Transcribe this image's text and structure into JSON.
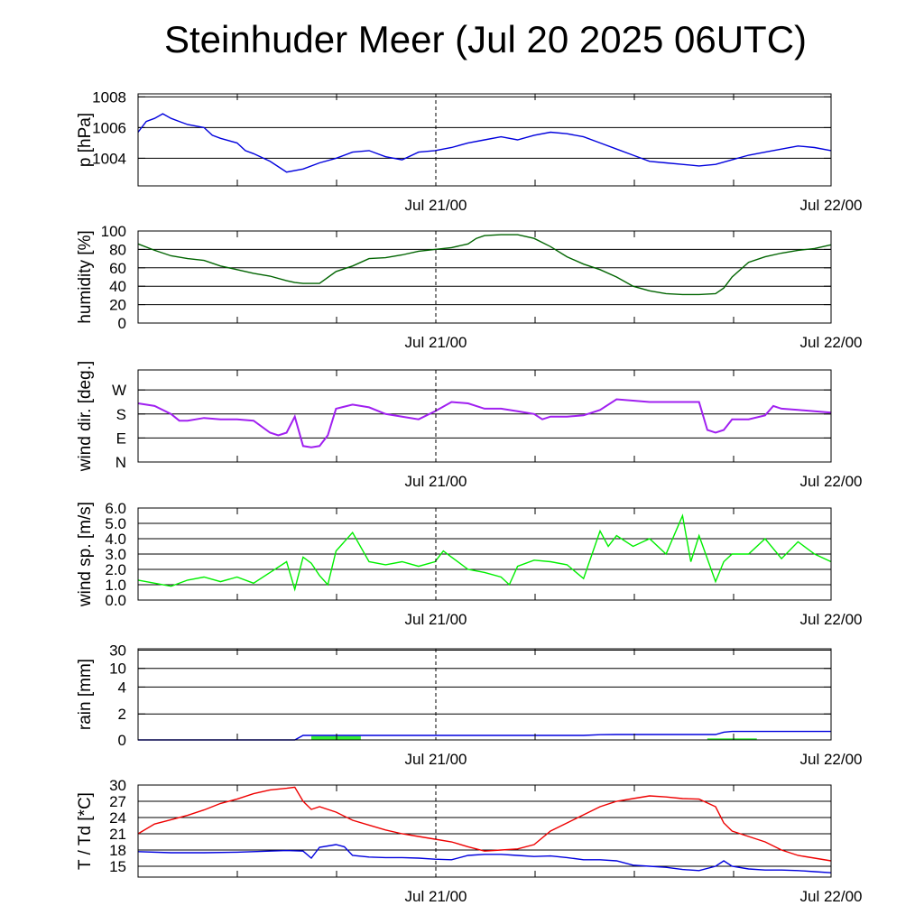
{
  "title": "Steinhuder Meer (Jul 20 2025 06UTC)",
  "x_tick_labels": [
    "Jul 21/00",
    "Jul 22/00"
  ],
  "chart_data": [
    {
      "type": "line",
      "ylabel": "p [hPa]",
      "y_ticks": [
        1004,
        1006,
        1008
      ],
      "ylim": [
        1002.2,
        1008.2
      ],
      "x_unit": "hours since Jul 20 06UTC",
      "xlim": [
        0,
        42
      ],
      "series": [
        {
          "color": "#0000dd",
          "x": [
            0,
            0.5,
            1,
            1.5,
            2,
            2.5,
            3,
            4,
            4.5,
            5,
            6,
            6.5,
            7,
            8,
            9,
            10,
            11,
            12,
            13,
            14,
            15,
            16,
            17,
            18,
            19,
            20,
            21,
            22,
            23,
            24,
            25,
            26,
            27,
            28,
            29,
            30,
            31,
            32,
            33,
            34,
            35,
            36,
            37,
            38,
            39,
            40,
            41,
            42
          ],
          "y": [
            1005.7,
            1006.4,
            1006.6,
            1006.9,
            1006.6,
            1006.4,
            1006.2,
            1006.0,
            1005.5,
            1005.3,
            1005.0,
            1004.5,
            1004.3,
            1003.8,
            1003.1,
            1003.3,
            1003.7,
            1004.0,
            1004.4,
            1004.5,
            1004.1,
            1003.9,
            1004.4,
            1004.5,
            1004.7,
            1005.0,
            1005.2,
            1005.4,
            1005.2,
            1005.5,
            1005.7,
            1005.6,
            1005.4,
            1005.0,
            1004.6,
            1004.2,
            1003.8,
            1003.7,
            1003.6,
            1003.5,
            1003.6,
            1003.9,
            1004.2,
            1004.4,
            1004.6,
            1004.8,
            1004.7,
            1004.5
          ]
        }
      ]
    },
    {
      "type": "line",
      "ylabel": "humidity [%]",
      "y_ticks": [
        0,
        20,
        40,
        60,
        80,
        100
      ],
      "ylim": [
        0,
        100
      ],
      "x_unit": "hours since Jul 20 06UTC",
      "xlim": [
        0,
        42
      ],
      "series": [
        {
          "color": "#006400",
          "x": [
            0,
            1,
            2,
            3,
            4,
            5,
            6,
            7,
            8,
            9,
            9.5,
            10,
            10.5,
            11,
            12,
            13,
            14,
            15,
            16,
            17,
            18,
            19,
            20,
            20.5,
            21,
            22,
            22.5,
            23,
            24,
            25,
            26,
            27,
            28,
            29,
            30,
            31,
            32,
            33,
            34,
            35,
            35.5,
            36,
            37,
            38,
            39,
            40,
            41,
            42
          ],
          "y": [
            86,
            79,
            73,
            70,
            68,
            62,
            58,
            54,
            51,
            46,
            44,
            43,
            43,
            43,
            56,
            62,
            70,
            71,
            74,
            78,
            80,
            82,
            86,
            92,
            95,
            96,
            96,
            96,
            92,
            83,
            72,
            64,
            58,
            50,
            40,
            35,
            32,
            31,
            31,
            32,
            38,
            50,
            66,
            72,
            76,
            79,
            81,
            85
          ]
        }
      ]
    },
    {
      "type": "scatter",
      "ylabel": "wind dir. [deg.]",
      "y_ticks": [
        "N",
        "E",
        "S",
        "W"
      ],
      "y_tick_values": [
        0,
        90,
        180,
        270
      ],
      "ylim": [
        0,
        345
      ],
      "x_unit": "hours since Jul 20 06UTC",
      "xlim": [
        0,
        42
      ],
      "series": [
        {
          "color": "#a020f0",
          "x": [
            0,
            1,
            2,
            2.5,
            3,
            4,
            5,
            6,
            7,
            8,
            8.5,
            9,
            9.5,
            10,
            10.5,
            10.5,
            11,
            11.5,
            12,
            13,
            14,
            15,
            16,
            17,
            18,
            19,
            20,
            21,
            22,
            23,
            24,
            24.5,
            25,
            26,
            27,
            28,
            29,
            30,
            31,
            32,
            33,
            34,
            34.5,
            35,
            35.5,
            36,
            37,
            38,
            38.5,
            39,
            40,
            41,
            42
          ],
          "y": [
            220,
            210,
            180,
            155,
            155,
            165,
            160,
            160,
            155,
            110,
            100,
            110,
            170,
            60,
            55,
            55,
            60,
            100,
            200,
            215,
            205,
            180,
            170,
            160,
            190,
            225,
            220,
            200,
            200,
            190,
            180,
            160,
            170,
            170,
            175,
            195,
            235,
            230,
            225,
            225,
            225,
            225,
            120,
            110,
            120,
            160,
            160,
            175,
            210,
            200,
            195,
            190,
            185
          ]
        }
      ]
    },
    {
      "type": "line",
      "ylabel": "wind sp. [m/s]",
      "y_ticks": [
        "0.0",
        "1.0",
        "2.0",
        "3.0",
        "4.0",
        "5.0",
        "6.0"
      ],
      "y_tick_values": [
        0,
        1,
        2,
        3,
        4,
        5,
        6
      ],
      "ylim": [
        0,
        6
      ],
      "x_unit": "hours since Jul 20 06UTC",
      "xlim": [
        0,
        42
      ],
      "series": [
        {
          "color": "#00ee00",
          "x": [
            0,
            1,
            2,
            3,
            4,
            5,
            6,
            7,
            8,
            9,
            9.5,
            10,
            10.5,
            11,
            11.5,
            12,
            13,
            14,
            15,
            16,
            17,
            18,
            18.5,
            19,
            20,
            21,
            22,
            22.5,
            23,
            24,
            25,
            26,
            27,
            28,
            28.5,
            29,
            30,
            31,
            32,
            33,
            33.5,
            34,
            35,
            35.5,
            36,
            37,
            38,
            39,
            40,
            41,
            42
          ],
          "y": [
            1.3,
            1.1,
            0.9,
            1.3,
            1.5,
            1.2,
            1.5,
            1.1,
            1.8,
            2.5,
            0.7,
            2.8,
            2.4,
            1.6,
            1.0,
            3.2,
            4.4,
            2.5,
            2.3,
            2.5,
            2.2,
            2.5,
            3.2,
            2.8,
            2.0,
            1.8,
            1.5,
            1.0,
            2.2,
            2.6,
            2.5,
            2.3,
            1.4,
            4.5,
            3.5,
            4.2,
            3.5,
            4.0,
            3.0,
            5.5,
            2.5,
            4.2,
            1.2,
            2.5,
            3.0,
            3.0,
            4.0,
            2.7,
            3.8,
            3.0,
            2.5
          ]
        }
      ]
    },
    {
      "type": "line",
      "ylabel": "rain [mm]",
      "y_ticks": [
        "0",
        "2",
        "4",
        "10",
        "30"
      ],
      "y_tick_values": [
        0,
        2,
        4,
        10,
        30
      ],
      "y_scale": "nonlinear",
      "ylim": [
        0,
        30
      ],
      "x_unit": "hours since Jul 20 06UTC",
      "xlim": [
        0,
        42
      ],
      "series": [
        {
          "color": "#0000dd",
          "x": [
            0,
            9.5,
            10,
            11,
            12,
            13,
            14,
            15,
            16,
            17,
            18,
            19,
            20,
            21,
            22,
            23,
            24,
            25,
            26,
            27,
            28,
            29,
            30,
            31,
            32,
            33,
            34,
            35,
            35.5,
            36,
            37,
            38,
            39,
            40,
            41,
            42
          ],
          "y": [
            0,
            0,
            0.35,
            0.35,
            0.35,
            0.35,
            0.35,
            0.35,
            0.35,
            0.35,
            0.35,
            0.35,
            0.35,
            0.35,
            0.35,
            0.35,
            0.35,
            0.35,
            0.35,
            0.35,
            0.4,
            0.42,
            0.42,
            0.42,
            0.42,
            0.42,
            0.42,
            0.42,
            0.6,
            0.65,
            0.65,
            0.65,
            0.65,
            0.65,
            0.65,
            0.65
          ]
        }
      ],
      "bars": [
        {
          "color": "#33ee33",
          "x0": 10.5,
          "x1": 13.5,
          "height": 0.3
        },
        {
          "color": "#33ee33",
          "x0": 34.5,
          "x1": 37.5,
          "height": 0.12
        }
      ]
    },
    {
      "type": "line",
      "ylabel": "T / Td [*C]",
      "y_ticks": [
        15,
        18,
        21,
        24,
        27,
        30
      ],
      "ylim": [
        13,
        30
      ],
      "x_unit": "hours since Jul 20 06UTC",
      "xlim": [
        0,
        42
      ],
      "series": [
        {
          "color": "#ee0000",
          "x": [
            0,
            1,
            2,
            3,
            4,
            5,
            6,
            7,
            8,
            9,
            9.5,
            10,
            10.5,
            11,
            12,
            13,
            14,
            15,
            16,
            17,
            18,
            19,
            20,
            21,
            22,
            23,
            24,
            25,
            26,
            27,
            28,
            29,
            30,
            31,
            32,
            33,
            34,
            35,
            35.5,
            36,
            37,
            38,
            39,
            40,
            41,
            42
          ],
          "y": [
            21,
            22.8,
            23.6,
            24.4,
            25.4,
            26.6,
            27.4,
            28.4,
            29.1,
            29.4,
            29.6,
            27,
            25.5,
            26,
            25,
            23.5,
            22.6,
            21.7,
            21,
            20.5,
            20,
            19.5,
            18.6,
            17.8,
            18,
            18.2,
            19,
            21.5,
            23,
            24.5,
            26,
            27,
            27.5,
            28,
            27.8,
            27.5,
            27.4,
            26,
            23,
            21.5,
            20.5,
            19.5,
            18,
            17,
            16.5,
            16
          ]
        },
        {
          "color": "#0000dd",
          "x": [
            0,
            2,
            4,
            6,
            8,
            9,
            10,
            10.5,
            11,
            12,
            12.5,
            13,
            14,
            15,
            16,
            17,
            18,
            19,
            20,
            21,
            22,
            23,
            24,
            25,
            26,
            27,
            28,
            29,
            30,
            31,
            32,
            33,
            34,
            35,
            35.5,
            36,
            37,
            38,
            39,
            40,
            41,
            42
          ],
          "y": [
            17.7,
            17.5,
            17.5,
            17.6,
            17.8,
            17.9,
            17.8,
            16.5,
            18.5,
            19,
            18.6,
            17,
            16.7,
            16.6,
            16.6,
            16.5,
            16.3,
            16.2,
            17,
            17.2,
            17.2,
            17,
            16.8,
            16.9,
            16.6,
            16.2,
            16.2,
            16,
            15.2,
            15,
            14.8,
            14.4,
            14.2,
            15,
            16,
            15,
            14.5,
            14.3,
            14.3,
            14.2,
            14,
            13.8
          ]
        }
      ]
    }
  ]
}
